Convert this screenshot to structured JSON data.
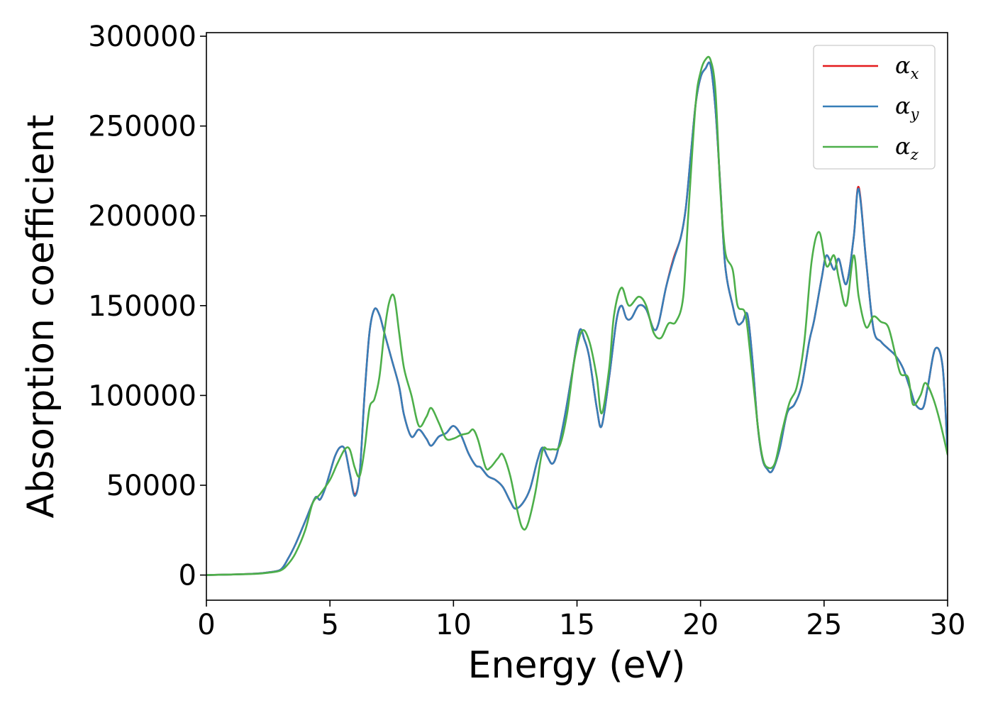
{
  "chart_data": {
    "type": "line",
    "title": "",
    "xlabel": "Energy (eV)",
    "ylabel": "Absorption coefficient",
    "xlim": [
      0,
      30
    ],
    "ylim": [
      -14000,
      302000
    ],
    "xticks": [
      0,
      5,
      10,
      15,
      20,
      25,
      30
    ],
    "xtick_labels": [
      "0",
      "5",
      "10",
      "15",
      "20",
      "25",
      "30"
    ],
    "yticks": [
      0,
      50000,
      100000,
      150000,
      200000,
      250000,
      300000
    ],
    "ytick_labels": [
      "0",
      "50000",
      "100000",
      "150000",
      "200000",
      "250000",
      "300000"
    ],
    "grid": false,
    "legend": {
      "position": "top-right"
    },
    "series": [
      {
        "name": "αx",
        "label_main": "α",
        "label_sub": "x",
        "color": "#e41a1c",
        "x": [
          0,
          1,
          2,
          2.5,
          3.0,
          3.3,
          3.6,
          4.0,
          4.4,
          4.6,
          4.8,
          5.0,
          5.2,
          5.4,
          5.6,
          5.8,
          6.0,
          6.2,
          6.4,
          6.6,
          6.8,
          7.0,
          7.2,
          7.5,
          7.8,
          8.0,
          8.3,
          8.6,
          8.9,
          9.1,
          9.4,
          9.7,
          10.0,
          10.3,
          10.6,
          10.9,
          11.1,
          11.4,
          11.7,
          12.0,
          12.3,
          12.5,
          12.8,
          13.1,
          13.4,
          13.6,
          13.8,
          14.0,
          14.2,
          14.5,
          14.8,
          15.1,
          15.3,
          15.5,
          15.8,
          16.0,
          16.3,
          16.6,
          16.8,
          17.0,
          17.2,
          17.5,
          17.8,
          18.1,
          18.3,
          18.6,
          18.9,
          19.2,
          19.4,
          19.6,
          19.8,
          20.0,
          20.2,
          20.4,
          20.6,
          20.8,
          21.0,
          21.3,
          21.5,
          21.7,
          21.9,
          22.1,
          22.3,
          22.5,
          22.7,
          22.9,
          23.2,
          23.5,
          23.8,
          24.1,
          24.4,
          24.6,
          24.9,
          25.1,
          25.4,
          25.6,
          25.9,
          26.2,
          26.4,
          26.7,
          27.0,
          27.3,
          27.6,
          27.9,
          28.2,
          28.5,
          28.7,
          29.0,
          29.2,
          29.5,
          29.8,
          30.0
        ],
        "y": [
          0,
          300,
          800,
          1500,
          3000,
          9000,
          17000,
          30000,
          43000,
          42000,
          48000,
          57000,
          66000,
          71000,
          70000,
          57000,
          45000,
          56000,
          100000,
          135000,
          148000,
          145000,
          135000,
          120000,
          105000,
          89000,
          77000,
          81000,
          76000,
          72000,
          77000,
          79000,
          83000,
          78000,
          68000,
          61000,
          60000,
          55000,
          53000,
          49000,
          41000,
          37000,
          40000,
          48000,
          64000,
          71000,
          66000,
          62000,
          68000,
          88000,
          112000,
          136000,
          131000,
          121000,
          93000,
          83000,
          110000,
          142000,
          150000,
          143000,
          143000,
          150000,
          148000,
          137000,
          140000,
          160000,
          176000,
          188000,
          204000,
          233000,
          262000,
          277000,
          282000,
          284000,
          260000,
          217000,
          172000,
          150000,
          140000,
          141000,
          145000,
          120000,
          85000,
          65000,
          59000,
          58000,
          70000,
          90000,
          95000,
          106000,
          130000,
          142000,
          165000,
          178000,
          170000,
          176000,
          162000,
          188000,
          216000,
          175000,
          137000,
          130000,
          126000,
          122000,
          115000,
          103000,
          95000,
          93000,
          105000,
          126000,
          116000,
          68000
        ]
      },
      {
        "name": "αy",
        "label_main": "α",
        "label_sub": "y",
        "color": "#377eb8",
        "x": [
          0,
          1,
          2,
          2.5,
          3.0,
          3.3,
          3.6,
          4.0,
          4.4,
          4.6,
          4.8,
          5.0,
          5.2,
          5.4,
          5.6,
          5.8,
          6.0,
          6.2,
          6.4,
          6.6,
          6.8,
          7.0,
          7.2,
          7.5,
          7.8,
          8.0,
          8.3,
          8.6,
          8.9,
          9.1,
          9.4,
          9.7,
          10.0,
          10.3,
          10.6,
          10.9,
          11.1,
          11.4,
          11.7,
          12.0,
          12.3,
          12.5,
          12.8,
          13.1,
          13.4,
          13.6,
          13.8,
          14.0,
          14.2,
          14.5,
          14.8,
          15.1,
          15.3,
          15.5,
          15.8,
          16.0,
          16.3,
          16.6,
          16.8,
          17.0,
          17.2,
          17.5,
          17.8,
          18.1,
          18.3,
          18.6,
          18.9,
          19.2,
          19.4,
          19.6,
          19.8,
          20.0,
          20.2,
          20.4,
          20.6,
          20.8,
          21.0,
          21.3,
          21.5,
          21.7,
          21.9,
          22.1,
          22.3,
          22.5,
          22.7,
          22.9,
          23.2,
          23.5,
          23.8,
          24.1,
          24.4,
          24.6,
          24.9,
          25.1,
          25.4,
          25.6,
          25.9,
          26.2,
          26.4,
          26.7,
          27.0,
          27.3,
          27.6,
          27.9,
          28.2,
          28.5,
          28.7,
          29.0,
          29.2,
          29.5,
          29.8,
          30.0
        ],
        "y": [
          0,
          300,
          800,
          1500,
          3000,
          9000,
          17000,
          30000,
          43000,
          42000,
          48000,
          57000,
          66000,
          71000,
          70000,
          57000,
          44000,
          56000,
          100000,
          135000,
          148000,
          145000,
          135000,
          120000,
          105000,
          89000,
          77000,
          81000,
          76000,
          72000,
          77000,
          79000,
          83000,
          78000,
          68000,
          61000,
          60000,
          55000,
          53000,
          49000,
          41000,
          37000,
          40000,
          48000,
          64000,
          71000,
          66000,
          62000,
          68000,
          88000,
          112000,
          136000,
          131000,
          121000,
          93000,
          83000,
          110000,
          142000,
          150000,
          143000,
          143000,
          150000,
          148000,
          137000,
          140000,
          160000,
          175000,
          188000,
          204000,
          233000,
          262000,
          277000,
          282000,
          284000,
          260000,
          217000,
          172000,
          150000,
          140000,
          141000,
          145000,
          120000,
          85000,
          65000,
          59000,
          58000,
          70000,
          90000,
          95000,
          106000,
          130000,
          142000,
          165000,
          178000,
          170000,
          176000,
          162000,
          188000,
          215000,
          175000,
          137000,
          130000,
          126000,
          122000,
          115000,
          103000,
          95000,
          93000,
          105000,
          126000,
          116000,
          68000
        ]
      },
      {
        "name": "αz",
        "label_main": "α",
        "label_sub": "z",
        "color": "#4daf4a",
        "x": [
          0,
          1,
          2,
          2.5,
          3.0,
          3.3,
          3.6,
          4.0,
          4.3,
          4.6,
          5.0,
          5.3,
          5.6,
          5.8,
          6.0,
          6.2,
          6.4,
          6.6,
          6.8,
          7.0,
          7.2,
          7.4,
          7.6,
          7.8,
          8.0,
          8.3,
          8.6,
          8.9,
          9.1,
          9.4,
          9.7,
          10.0,
          10.3,
          10.6,
          10.8,
          11.0,
          11.3,
          11.5,
          11.8,
          12.0,
          12.3,
          12.6,
          12.8,
          13.0,
          13.3,
          13.6,
          13.8,
          14.0,
          14.3,
          14.6,
          14.9,
          15.2,
          15.5,
          15.8,
          16.0,
          16.3,
          16.5,
          16.8,
          17.1,
          17.5,
          17.8,
          18.1,
          18.4,
          18.7,
          19.0,
          19.3,
          19.5,
          19.8,
          20.0,
          20.2,
          20.4,
          20.6,
          20.8,
          21.0,
          21.3,
          21.5,
          21.8,
          22.0,
          22.3,
          22.5,
          22.7,
          23.0,
          23.3,
          23.6,
          23.9,
          24.2,
          24.5,
          24.8,
          25.1,
          25.4,
          25.6,
          25.9,
          26.2,
          26.4,
          26.7,
          27.0,
          27.3,
          27.6,
          27.9,
          28.1,
          28.4,
          28.6,
          28.9,
          29.1,
          29.4,
          29.7,
          30.0
        ],
        "y": [
          0,
          300,
          700,
          1300,
          2500,
          6000,
          12000,
          25000,
          40000,
          45000,
          53000,
          62000,
          70000,
          70000,
          60000,
          55000,
          70000,
          93000,
          98000,
          110000,
          135000,
          152000,
          155000,
          135000,
          115000,
          100000,
          83000,
          88000,
          93000,
          85000,
          76000,
          76000,
          78000,
          79000,
          81000,
          75000,
          60000,
          60000,
          65000,
          67000,
          55000,
          35000,
          26000,
          28000,
          45000,
          69000,
          70000,
          70000,
          72000,
          90000,
          120000,
          136000,
          130000,
          110000,
          90000,
          115000,
          145000,
          160000,
          150000,
          155000,
          150000,
          135000,
          132000,
          140000,
          141000,
          155000,
          200000,
          262000,
          280000,
          287000,
          287000,
          270000,
          215000,
          180000,
          170000,
          150000,
          146000,
          125000,
          85000,
          66000,
          60000,
          62000,
          80000,
          96000,
          105000,
          130000,
          175000,
          191000,
          172000,
          178000,
          165000,
          150000,
          178000,
          155000,
          138000,
          144000,
          141000,
          138000,
          122000,
          112000,
          110000,
          95000,
          100000,
          107000,
          99000,
          85000,
          67000
        ]
      }
    ]
  }
}
